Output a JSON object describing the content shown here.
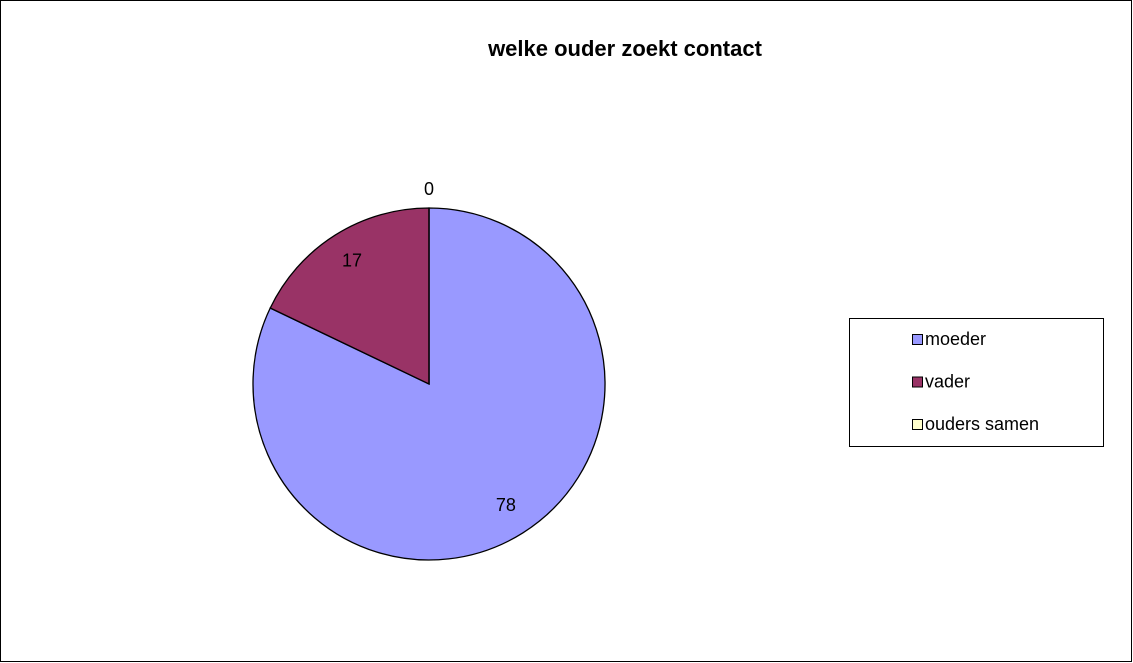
{
  "chart_data": {
    "type": "pie",
    "title": "welke ouder zoekt contact",
    "categories": [
      "moeder",
      "vader",
      "ouders samen"
    ],
    "values": [
      78,
      17,
      0
    ],
    "colors": [
      "#9999ff",
      "#993366",
      "#ffffcc"
    ],
    "legend": "right"
  }
}
